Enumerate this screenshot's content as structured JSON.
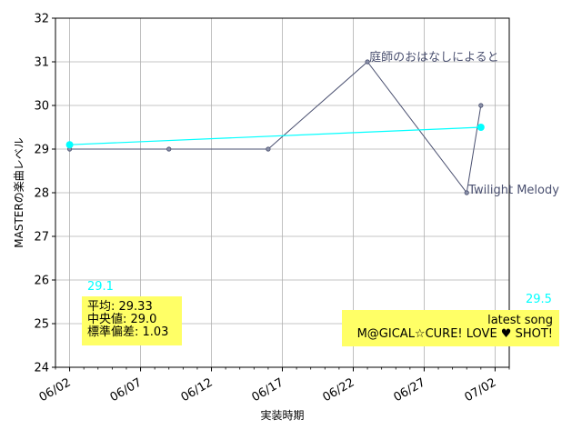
{
  "chart_data": {
    "type": "line",
    "xlabel": "実装時期",
    "ylabel": "MASTERの楽曲レベル",
    "ylim": [
      24,
      32
    ],
    "xlim": [
      "2023-06-01",
      "2023-07-03"
    ],
    "grid": true,
    "x_ticks": [
      "06/02",
      "06/07",
      "06/12",
      "06/17",
      "06/22",
      "06/27",
      "07/02"
    ],
    "x_tick_dates": [
      "2023-06-02",
      "2023-06-07",
      "2023-06-12",
      "2023-06-17",
      "2023-06-22",
      "2023-06-27",
      "2023-07-02"
    ],
    "y_ticks": [
      24,
      25,
      26,
      27,
      28,
      29,
      30,
      31,
      32
    ],
    "series": [
      {
        "color": "#4a5070",
        "points": [
          {
            "x": "2023-06-02",
            "y": 29.0
          },
          {
            "x": "2023-06-09",
            "y": 29.0
          },
          {
            "x": "2023-06-16",
            "y": 29.0
          },
          {
            "x": "2023-06-23",
            "y": 31.0
          },
          {
            "x": "2023-06-30",
            "y": 28.0
          },
          {
            "x": "2023-07-01",
            "y": 30.0
          }
        ]
      },
      {
        "color": "#00ffff",
        "points": [
          {
            "x": "2023-06-02",
            "y": 29.1
          },
          {
            "x": "2023-07-01",
            "y": 29.5
          }
        ]
      }
    ],
    "annotations": [
      {
        "text": "庭師のおはなしによると",
        "x": "2023-06-23",
        "y": 31.0,
        "color": "#4a5070"
      },
      {
        "text": "Twilight Melody",
        "x": "2023-06-30",
        "y": 28.0,
        "color": "#4a5070"
      },
      {
        "text": "29.1",
        "x": "2023-06-02",
        "y": 29.1,
        "color": "#00ffff"
      },
      {
        "text": "29.5",
        "x": "2023-07-01",
        "y": 29.5,
        "color": "#00ffff"
      }
    ],
    "stats_box": {
      "lines": [
        "平均: 29.33",
        "中央値: 29.0",
        "標準偏差:  1.03"
      ],
      "background": "#ffff66"
    },
    "latest_box": {
      "lines": [
        "latest song",
        "M@GICAL☆CURE! LOVE ♥ SHOT!"
      ],
      "background": "#ffff66"
    }
  }
}
